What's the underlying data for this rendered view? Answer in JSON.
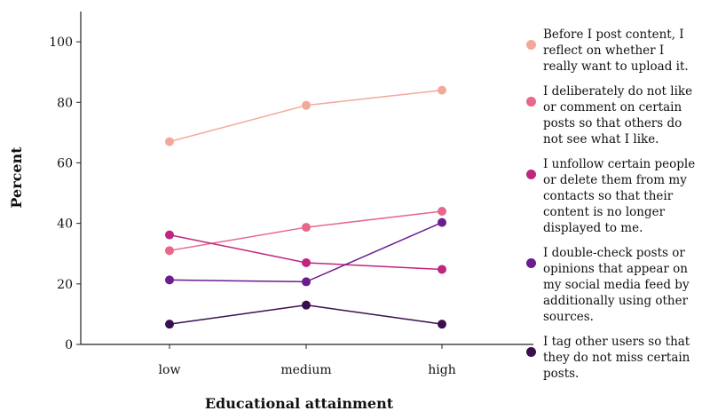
{
  "chart_data": {
    "type": "line",
    "xlabel": "Educational attainment",
    "ylabel": "Percent",
    "categories": [
      "low",
      "medium",
      "high"
    ],
    "ylim": [
      0,
      110
    ],
    "yticks": [
      0,
      20,
      40,
      60,
      80,
      100
    ],
    "grid": false,
    "legend_position": "right",
    "series": [
      {
        "name": "Before I post content, I reflect on whether I really want to upload it.",
        "color": "#f3a99a",
        "values": [
          67,
          79,
          84
        ]
      },
      {
        "name": "I deliberately do not like or comment on certain posts so that others do not see what I like.",
        "color": "#e7688a",
        "values": [
          31,
          38.7,
          44
        ]
      },
      {
        "name": "I unfollow certain people or delete them from my contacts so that their content is no longer displayed to me.",
        "color": "#c02580",
        "values": [
          36.2,
          27,
          24.8
        ]
      },
      {
        "name": "I double-check posts or opinions that appear on my social media feed by additionally using other sources.",
        "color": "#6a1d8f",
        "values": [
          21.3,
          20.7,
          40.3
        ]
      },
      {
        "name": "I tag other users so that they do not miss certain posts.",
        "color": "#3a0f4f",
        "values": [
          6.7,
          13,
          6.7
        ]
      }
    ]
  }
}
